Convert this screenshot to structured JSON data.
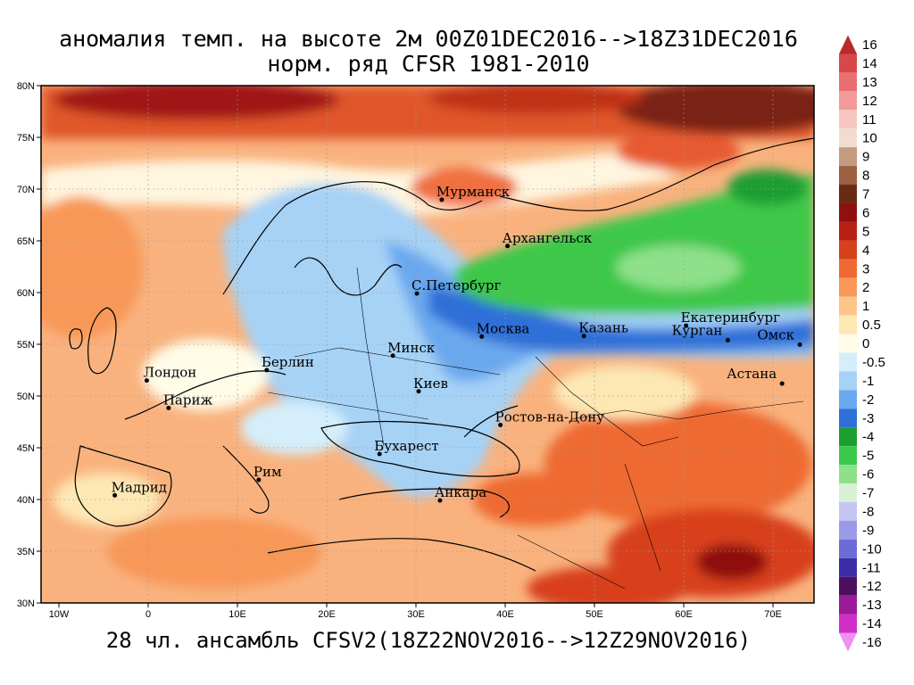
{
  "title_line1": "аномалия темп. на высоте 2м 00Z01DEC2016-->18Z31DEC2016",
  "title_line2": "норм. ряд CFSR 1981-2010",
  "footer": "28 чл. ансамбль CFSV2(18Z22NOV2016-->12Z29NOV2016)",
  "lon_labels": [
    "10W",
    "0",
    "10E",
    "20E",
    "30E",
    "40E",
    "50E",
    "60E",
    "70E"
  ],
  "lat_labels": [
    "80N",
    "75N",
    "70N",
    "65N",
    "60N",
    "55N",
    "50N",
    "45N",
    "40N",
    "35N",
    "30N"
  ],
  "cities": [
    {
      "name": "Мурманск",
      "lon": 33.1,
      "lat": 68.97
    },
    {
      "name": "Архангельск",
      "lon": 40.5,
      "lat": 64.5
    },
    {
      "name": "С.Петербург",
      "lon": 30.3,
      "lat": 59.9
    },
    {
      "name": "Москва",
      "lon": 37.6,
      "lat": 55.75
    },
    {
      "name": "Казань",
      "lon": 49.1,
      "lat": 55.8
    },
    {
      "name": "Екатеринбург",
      "lon": 60.6,
      "lat": 56.8
    },
    {
      "name": "Курган",
      "lon": 65.3,
      "lat": 55.4
    },
    {
      "name": "Омск",
      "lon": 73.4,
      "lat": 54.97
    },
    {
      "name": "Астана",
      "lon": 71.4,
      "lat": 51.2
    },
    {
      "name": "Минск",
      "lon": 27.6,
      "lat": 53.9
    },
    {
      "name": "Киев",
      "lon": 30.5,
      "lat": 50.45
    },
    {
      "name": "Берлин",
      "lon": 13.4,
      "lat": 52.5
    },
    {
      "name": "Лондон",
      "lon": -0.1,
      "lat": 51.5
    },
    {
      "name": "Париж",
      "lon": 2.35,
      "lat": 48.85
    },
    {
      "name": "Ростов-на-Дону",
      "lon": 39.7,
      "lat": 47.2
    },
    {
      "name": "Бухарест",
      "lon": 26.1,
      "lat": 44.4
    },
    {
      "name": "Рим",
      "lon": 12.5,
      "lat": 41.9
    },
    {
      "name": "Мадрид",
      "lon": -3.7,
      "lat": 40.4
    },
    {
      "name": "Анкара",
      "lon": 32.9,
      "lat": 39.9
    }
  ],
  "colorbar": [
    {
      "label": "16",
      "color": "#b92a2a"
    },
    {
      "label": "14",
      "color": "#d84848"
    },
    {
      "label": "13",
      "color": "#e87070"
    },
    {
      "label": "12",
      "color": "#f29a9a"
    },
    {
      "label": "11",
      "color": "#f8c6c0"
    },
    {
      "label": "10",
      "color": "#f0ddd0"
    },
    {
      "label": "9",
      "color": "#c49a80"
    },
    {
      "label": "8",
      "color": "#9a6040"
    },
    {
      "label": "7",
      "color": "#6a2a14"
    },
    {
      "label": "6",
      "color": "#8e1010"
    },
    {
      "label": "5",
      "color": "#b82014"
    },
    {
      "label": "4",
      "color": "#d8401c"
    },
    {
      "label": "3",
      "color": "#ee6a30"
    },
    {
      "label": "2",
      "color": "#f89858"
    },
    {
      "label": "1",
      "color": "#fcc48a"
    },
    {
      "label": "0.5",
      "color": "#fde8b4"
    },
    {
      "label": "0",
      "color": "#fffce8"
    },
    {
      "label": "-0.5",
      "color": "#d4eefb"
    },
    {
      "label": "-1",
      "color": "#a6d2f6"
    },
    {
      "label": "-2",
      "color": "#6aa8ee"
    },
    {
      "label": "-3",
      "color": "#2f70d8"
    },
    {
      "label": "-4",
      "color": "#1c9e30"
    },
    {
      "label": "-5",
      "color": "#3cc84a"
    },
    {
      "label": "-6",
      "color": "#8ee08a"
    },
    {
      "label": "-7",
      "color": "#d8f0d4"
    },
    {
      "label": "-8",
      "color": "#c4c4f2"
    },
    {
      "label": "-9",
      "color": "#9a9ae8"
    },
    {
      "label": "-10",
      "color": "#6c6cd8"
    },
    {
      "label": "-11",
      "color": "#3c2ca8"
    },
    {
      "label": "-12",
      "color": "#4c1060"
    },
    {
      "label": "-13",
      "color": "#9a1a9a"
    },
    {
      "label": "-14",
      "color": "#d030c8"
    },
    {
      "label": "-16",
      "color": "#f090f0"
    }
  ]
}
